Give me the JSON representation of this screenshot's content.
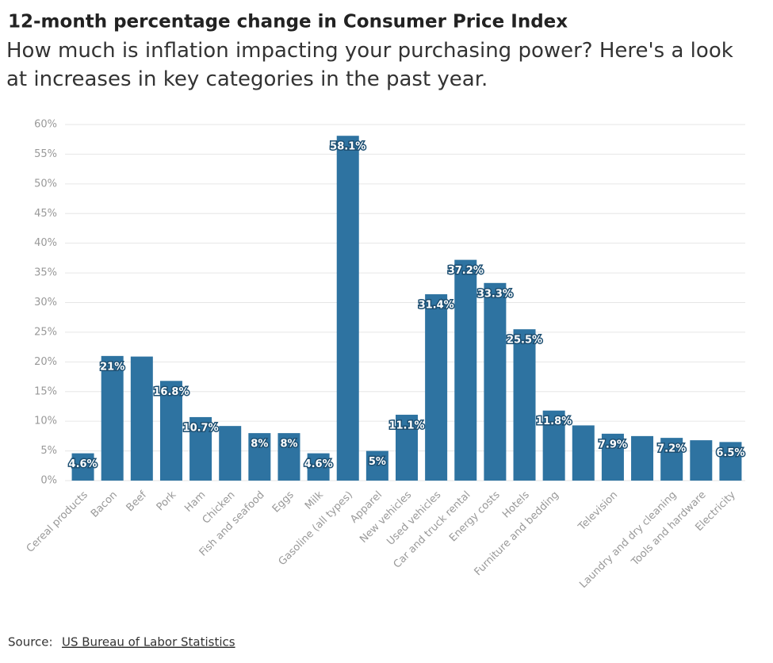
{
  "chart_data": {
    "type": "bar",
    "title": "12-month percentage change in Consumer Price Index",
    "subtitle": "How much is inflation impacting your purchasing power? Here's a look at increases in key categories in the past year.",
    "source_label": "Source:",
    "source_link": "US Bureau of Labor Statistics",
    "categories": [
      "Cereal products",
      "Bacon",
      "Beef",
      "Pork",
      "Ham",
      "Chicken",
      "Fish and seafood",
      "Eggs",
      "Milk",
      "Gasoline (all types)",
      "Apparel",
      "New vehicles",
      "Used vehicles",
      "Car and truck rental",
      "Energy costs",
      "Hotels",
      "Furniture and bedding",
      null,
      "Television",
      null,
      "Laundry and dry cleaning",
      "Tools and hardware",
      "Electricity"
    ],
    "values": [
      4.6,
      21,
      20.9,
      16.8,
      10.7,
      9.2,
      8,
      8,
      4.6,
      58.1,
      5,
      11.1,
      31.4,
      37.2,
      33.3,
      25.5,
      11.8,
      9.3,
      7.9,
      7.5,
      7.2,
      6.8,
      6.5
    ],
    "value_labels": [
      "4.6%",
      "21%",
      null,
      "16.8%",
      "10.7%",
      null,
      "8%",
      "8%",
      "4.6%",
      "58.1%",
      "5%",
      "11.1%",
      "31.4%",
      "37.2%",
      "33.3%",
      "25.5%",
      "11.8%",
      null,
      "7.9%",
      null,
      "7.2%",
      null,
      "6.5%"
    ],
    "color": "#2e73a1",
    "ylim": [
      0,
      60
    ],
    "yticks": [
      {
        "value": 0,
        "label": "0%"
      },
      {
        "value": 5,
        "label": "5%"
      },
      {
        "value": 10,
        "label": "10%"
      },
      {
        "value": 15,
        "label": "15%"
      },
      {
        "value": 20,
        "label": "20%"
      },
      {
        "value": 25,
        "label": "25%"
      },
      {
        "value": 30,
        "label": "30%"
      },
      {
        "value": 35,
        "label": "35%"
      },
      {
        "value": 40,
        "label": "40%"
      },
      {
        "value": 45,
        "label": "45%"
      },
      {
        "value": 50,
        "label": "50%"
      },
      {
        "value": 55,
        "label": "55%"
      },
      {
        "value": 60,
        "label": "60%"
      }
    ],
    "grid": true
  }
}
